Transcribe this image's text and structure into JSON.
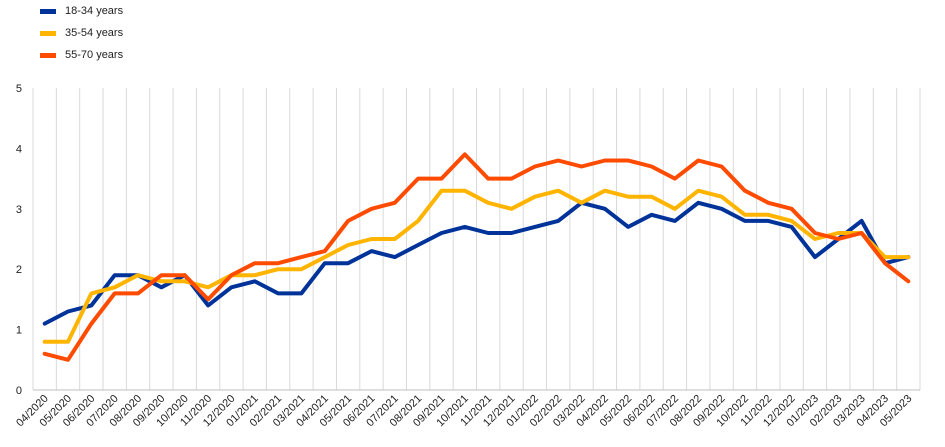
{
  "chart_data": {
    "type": "line",
    "title": "",
    "xlabel": "",
    "ylabel": "",
    "ylim": [
      0,
      5
    ],
    "yticks": [
      "0",
      "1",
      "2",
      "3",
      "4",
      "5"
    ],
    "grid": "vertical",
    "legend_position": "top-left",
    "categories": [
      "04/2020",
      "05/2020",
      "06/2020",
      "07/2020",
      "08/2020",
      "09/2020",
      "10/2020",
      "11/2020",
      "12/2020",
      "01/2021",
      "02/2021",
      "03/2021",
      "04/2021",
      "05/2021",
      "06/2021",
      "07/2021",
      "08/2021",
      "09/2021",
      "10/2021",
      "11/2021",
      "12/2021",
      "01/2022",
      "02/2022",
      "03/2022",
      "04/2022",
      "05/2022",
      "06/2022",
      "07/2022",
      "08/2022",
      "09/2022",
      "10/2022",
      "11/2022",
      "12/2022",
      "01/2023",
      "02/2023",
      "03/2023",
      "04/2023",
      "05/2023"
    ],
    "series": [
      {
        "name": "18-34 years",
        "color": "#003399",
        "values": [
          1.1,
          1.3,
          1.4,
          1.9,
          1.9,
          1.7,
          1.9,
          1.4,
          1.7,
          1.8,
          1.6,
          1.6,
          2.1,
          2.1,
          2.3,
          2.2,
          2.4,
          2.6,
          2.7,
          2.6,
          2.6,
          2.7,
          2.8,
          3.1,
          3.0,
          2.7,
          2.9,
          2.8,
          3.1,
          3.0,
          2.8,
          2.8,
          2.7,
          2.2,
          2.5,
          2.8,
          2.1,
          2.2
        ]
      },
      {
        "name": "35-54 years",
        "color": "#ffb400",
        "values": [
          0.8,
          0.8,
          1.6,
          1.7,
          1.9,
          1.8,
          1.8,
          1.7,
          1.9,
          1.9,
          2.0,
          2.0,
          2.2,
          2.4,
          2.5,
          2.5,
          2.8,
          3.3,
          3.3,
          3.1,
          3.0,
          3.2,
          3.3,
          3.1,
          3.3,
          3.2,
          3.2,
          3.0,
          3.3,
          3.2,
          2.9,
          2.9,
          2.8,
          2.5,
          2.6,
          2.6,
          2.2,
          2.2
        ]
      },
      {
        "name": "55-70 years",
        "color": "#ff4b00",
        "values": [
          0.6,
          0.5,
          1.1,
          1.6,
          1.6,
          1.9,
          1.9,
          1.5,
          1.9,
          2.1,
          2.1,
          2.2,
          2.3,
          2.8,
          3.0,
          3.1,
          3.5,
          3.5,
          3.9,
          3.5,
          3.5,
          3.7,
          3.8,
          3.7,
          3.8,
          3.8,
          3.7,
          3.5,
          3.8,
          3.7,
          3.3,
          3.1,
          3.0,
          2.6,
          2.5,
          2.6,
          2.1,
          1.8
        ]
      }
    ]
  }
}
